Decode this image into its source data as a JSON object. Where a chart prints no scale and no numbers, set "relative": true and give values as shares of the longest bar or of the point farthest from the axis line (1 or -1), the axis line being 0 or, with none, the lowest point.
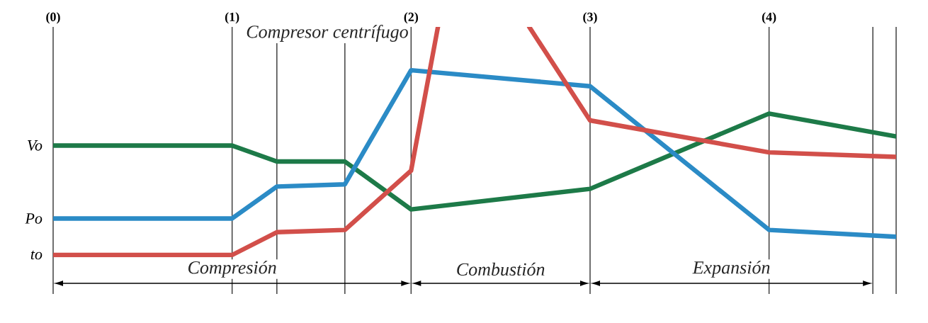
{
  "chart_data": {
    "type": "line",
    "relative": true,
    "tick_labels": "x",
    "grid": "x",
    "annotations": [
      "Compresor centrífugo",
      "Compresión",
      "Combustión",
      "Expansión"
    ],
    "xlim": [
      0,
      4.71
    ],
    "xticks": [
      {
        "value": 0,
        "label": "(0)"
      },
      {
        "value": 1,
        "label": "(1)"
      },
      {
        "value": 1.25,
        "label": null
      },
      {
        "value": 1.63,
        "label": null
      },
      {
        "value": 2,
        "label": "(2)"
      },
      {
        "value": 3,
        "label": "(3)"
      },
      {
        "value": 4,
        "label": "(4)"
      },
      {
        "value": 4.58,
        "label": null
      }
    ],
    "x": [
      0,
      1,
      1.25,
      1.63,
      2,
      3,
      4,
      4.71
    ],
    "series": [
      {
        "name": "Vo",
        "color": "#1d7a48",
        "values": [
          0.48,
          0.48,
          0.41,
          0.41,
          0.2,
          0.29,
          0.62,
          0.52
        ]
      },
      {
        "name": "Po",
        "color": "#2b8bc6",
        "values": [
          0.16,
          0.16,
          0.3,
          0.31,
          0.81,
          0.74,
          0.11,
          0.08
        ]
      },
      {
        "name": "to",
        "color": "#d24f4a",
        "x": [
          0,
          1,
          1.25,
          1.63,
          2,
          2.15,
          2.4,
          2.66,
          3,
          4,
          4.71
        ],
        "values": [
          0,
          0,
          0.1,
          0.11,
          0.37,
          1,
          null,
          1,
          0.59,
          0.45,
          0.43
        ]
      }
    ]
  }
}
